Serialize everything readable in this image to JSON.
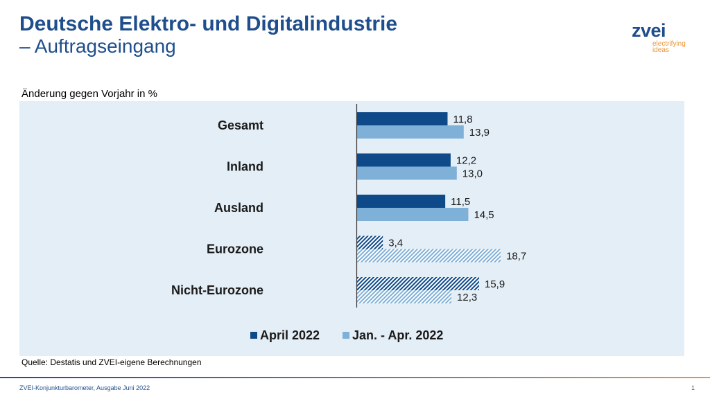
{
  "header": {
    "title_line1": "Deutsche Elektro- und Digitalindustrie",
    "title_line2": "– Auftragseingang"
  },
  "logo": {
    "wordmark": "zvei",
    "tagline_1": "electrifying",
    "tagline_2": "ideas"
  },
  "colors": {
    "title": "#1f4e8c",
    "series_dark": "#0e4a8a",
    "series_light": "#7fb0d8",
    "panel": "#e4eef6",
    "accent_orange": "#e8963a"
  },
  "chart_data": {
    "type": "bar",
    "orientation": "horizontal",
    "subtitle": "Änderung gegen Vorjahr in %",
    "categories": [
      "Gesamt",
      "Inland",
      "Ausland",
      "Eurozone",
      "Nicht-Eurozone"
    ],
    "hatched_categories": [
      "Eurozone",
      "Nicht-Eurozone"
    ],
    "series": [
      {
        "name": "April 2022",
        "values": [
          11.8,
          12.2,
          11.5,
          3.4,
          15.9
        ],
        "labels": [
          "11,8",
          "12,2",
          "11,5",
          "3,4",
          "15,9"
        ]
      },
      {
        "name": "Jan. - Apr. 2022",
        "values": [
          13.9,
          13.0,
          14.5,
          18.7,
          12.3
        ],
        "labels": [
          "13,9",
          "13,0",
          "14,5",
          "18,7",
          "12,3"
        ]
      }
    ],
    "xlim": [
      0,
      20
    ],
    "legend_position": "bottom"
  },
  "source": "Quelle: Destatis und ZVEI-eigene Berechnungen",
  "footer": {
    "text": "ZVEI-Konjunkturbarometer, Ausgabe Juni 2022",
    "page": "1"
  }
}
